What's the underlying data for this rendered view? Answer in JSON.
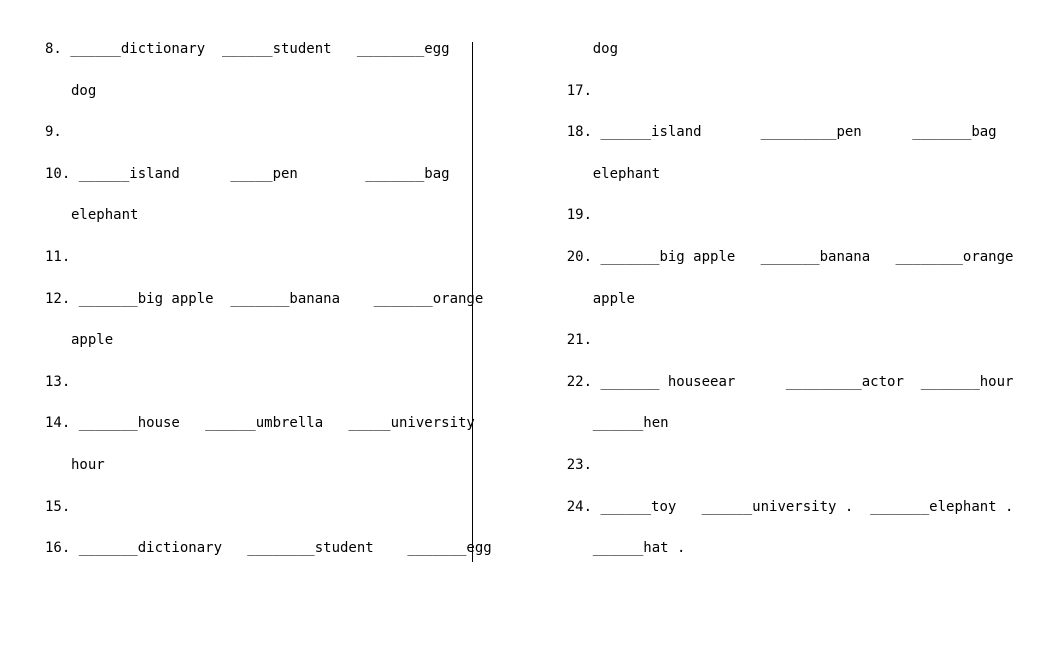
{
  "left": {
    "l1": "8. ______dictionary  ______student   ________egg",
    "l2": "dog",
    "l3": "9.",
    "l4": "10. ______island      _____pen        _______bag",
    "l5": "elephant",
    "l6": "11.",
    "l7": "12. _______big apple  _______banana    _______orange",
    "l8": "apple",
    "l9": "13.",
    "l10": "14. _______house   ______umbrella   _____university",
    "l11": "hour",
    "l12": "15.",
    "l13": "16. _______dictionary   ________student    _______egg"
  },
  "right": {
    "r1": "dog",
    "r2": "17.",
    "r3": "18. ______island       _________pen      _______bag",
    "r4": "elephant",
    "r5": "19.",
    "r6": "20. _______big apple   _______banana   ________orange",
    "r7": "apple",
    "r8": "21.",
    "r9": "22. _______ houseear      _________actor  _______hour",
    "r10": "______hen",
    "r11": "23.",
    "r12": "24. ______toy   ______university .  _______elephant .",
    "r13": "______hat ."
  }
}
